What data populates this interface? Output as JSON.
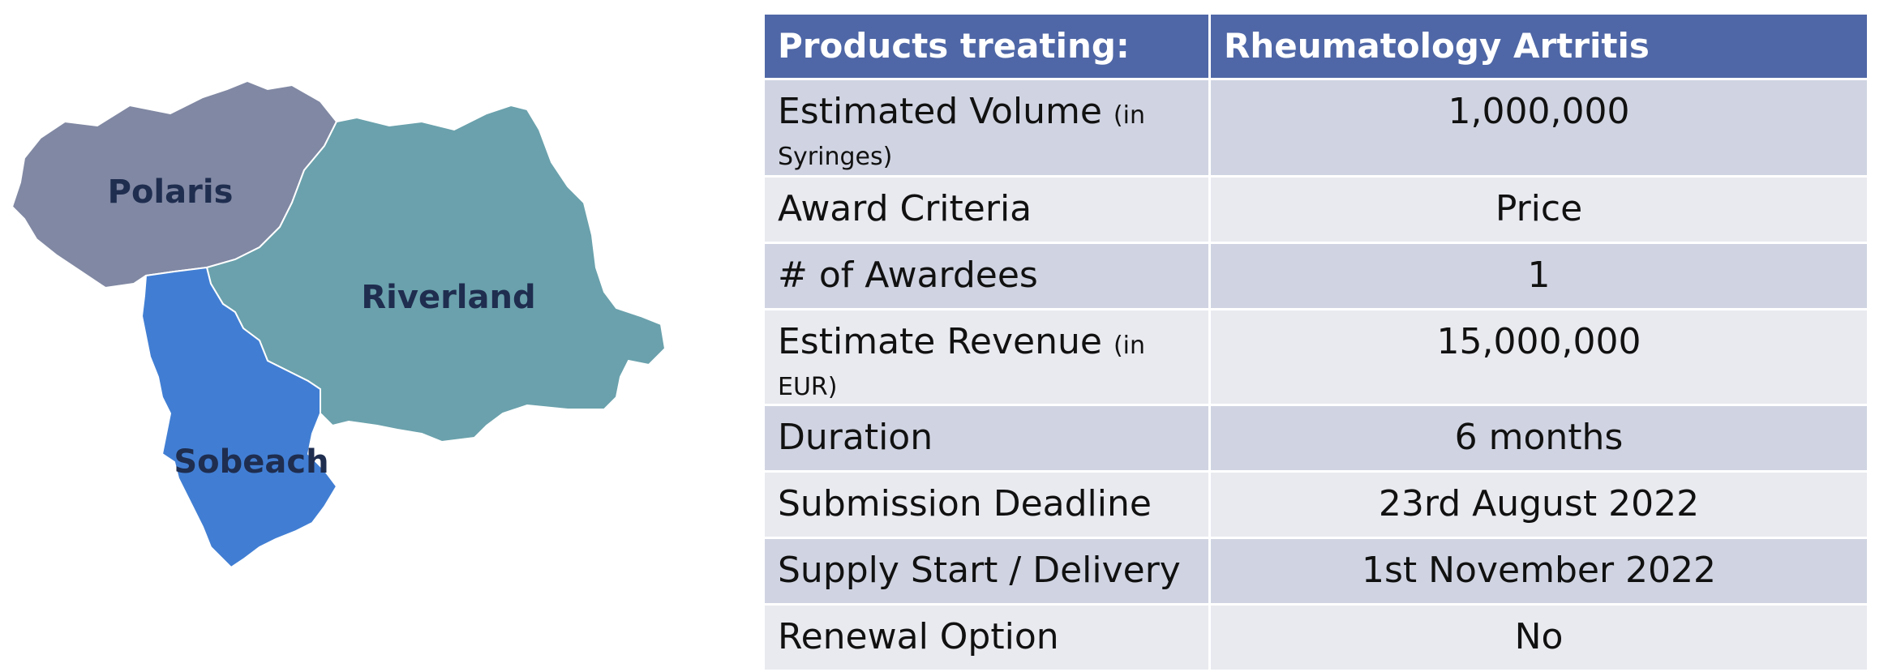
{
  "map": {
    "regions": [
      {
        "name": "Polaris",
        "color": "#8088a3"
      },
      {
        "name": "Riverland",
        "color": "#6aa1ac"
      },
      {
        "name": "Sobeach",
        "color": "#417ed3"
      }
    ]
  },
  "table": {
    "header": {
      "col1": "Products treating:",
      "col2": "Rheumatology Artritis"
    },
    "rows": [
      {
        "label": "Estimated Volume",
        "note": "(in Syringes)",
        "value": "1,000,000"
      },
      {
        "label": "Award Criteria",
        "note": "",
        "value": "Price"
      },
      {
        "label": "# of Awardees",
        "note": "",
        "value": "1"
      },
      {
        "label": "Estimate Revenue",
        "note": "(in EUR)",
        "value": "15,000,000"
      },
      {
        "label": "Duration",
        "note": "",
        "value": "6 months"
      },
      {
        "label": "Submission Deadline",
        "note": "",
        "value": "23rd August 2022"
      },
      {
        "label": "Supply Start / Delivery",
        "note": "",
        "value": "1st November 2022"
      },
      {
        "label": "Renewal Option",
        "note": "",
        "value": "No"
      }
    ]
  }
}
